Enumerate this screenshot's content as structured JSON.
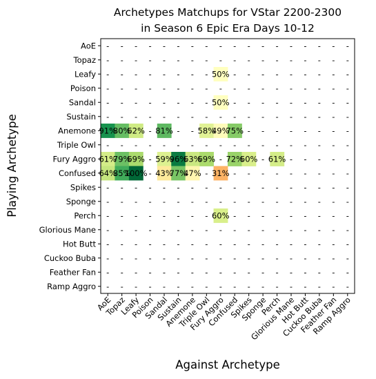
{
  "chart_data": {
    "type": "heatmap",
    "title": "Archetypes Matchups for VStar 2200-2300",
    "subtitle": "in Season 6 Epic Era Days 10-12",
    "xlabel": "Against Archetype",
    "ylabel": "Playing Archetype",
    "grid": false,
    "colormap": "RdYlGn",
    "value_range": [
      0,
      100
    ],
    "rows": [
      "AoE",
      "Topaz",
      "Leafy",
      "Poison",
      "Sandal",
      "Sustain",
      "Anemone",
      "Triple Owl",
      "Fury Aggro",
      "Confused",
      "Spikes",
      "Sponge",
      "Perch",
      "Glorious Mane",
      "Hot Butt",
      "Cuckoo Buba",
      "Feather Fan",
      "Ramp Aggro"
    ],
    "columns": [
      "AoE",
      "Topaz",
      "Leafy",
      "Poison",
      "Sandal",
      "Sustain",
      "Anemone",
      "Triple Owl",
      "Fury Aggro",
      "Confused",
      "Spikes",
      "Sponge",
      "Perch",
      "Glorious Mane",
      "Hot Butt",
      "Cuckoo Buba",
      "Feather Fan",
      "Ramp Aggro"
    ],
    "empty_label": "-",
    "values": [
      [
        null,
        null,
        null,
        null,
        null,
        null,
        null,
        null,
        null,
        null,
        null,
        null,
        null,
        null,
        null,
        null,
        null,
        null
      ],
      [
        null,
        null,
        null,
        null,
        null,
        null,
        null,
        null,
        null,
        null,
        null,
        null,
        null,
        null,
        null,
        null,
        null,
        null
      ],
      [
        null,
        null,
        null,
        null,
        null,
        null,
        null,
        null,
        50,
        null,
        null,
        null,
        null,
        null,
        null,
        null,
        null,
        null
      ],
      [
        null,
        null,
        null,
        null,
        null,
        null,
        null,
        null,
        null,
        null,
        null,
        null,
        null,
        null,
        null,
        null,
        null,
        null
      ],
      [
        null,
        null,
        null,
        null,
        null,
        null,
        null,
        null,
        50,
        null,
        null,
        null,
        null,
        null,
        null,
        null,
        null,
        null
      ],
      [
        null,
        null,
        null,
        null,
        null,
        null,
        null,
        null,
        null,
        null,
        null,
        null,
        null,
        null,
        null,
        null,
        null,
        null
      ],
      [
        91,
        80,
        62,
        null,
        81,
        null,
        null,
        58,
        49,
        75,
        null,
        null,
        null,
        null,
        null,
        null,
        null,
        null
      ],
      [
        null,
        null,
        null,
        null,
        null,
        null,
        null,
        null,
        null,
        null,
        null,
        null,
        null,
        null,
        null,
        null,
        null,
        null
      ],
      [
        61,
        79,
        69,
        null,
        59,
        96,
        63,
        69,
        null,
        72,
        60,
        null,
        61,
        null,
        null,
        null,
        null,
        null
      ],
      [
        64,
        85,
        100,
        null,
        43,
        77,
        47,
        null,
        31,
        null,
        null,
        null,
        null,
        null,
        null,
        null,
        null,
        null
      ],
      [
        null,
        null,
        null,
        null,
        null,
        null,
        null,
        null,
        null,
        null,
        null,
        null,
        null,
        null,
        null,
        null,
        null,
        null
      ],
      [
        null,
        null,
        null,
        null,
        null,
        null,
        null,
        null,
        null,
        null,
        null,
        null,
        null,
        null,
        null,
        null,
        null,
        null
      ],
      [
        null,
        null,
        null,
        null,
        null,
        null,
        null,
        null,
        60,
        null,
        null,
        null,
        null,
        null,
        null,
        null,
        null,
        null
      ],
      [
        null,
        null,
        null,
        null,
        null,
        null,
        null,
        null,
        null,
        null,
        null,
        null,
        null,
        null,
        null,
        null,
        null,
        null
      ],
      [
        null,
        null,
        null,
        null,
        null,
        null,
        null,
        null,
        null,
        null,
        null,
        null,
        null,
        null,
        null,
        null,
        null,
        null
      ],
      [
        null,
        null,
        null,
        null,
        null,
        null,
        null,
        null,
        null,
        null,
        null,
        null,
        null,
        null,
        null,
        null,
        null,
        null
      ],
      [
        null,
        null,
        null,
        null,
        null,
        null,
        null,
        null,
        null,
        null,
        null,
        null,
        null,
        null,
        null,
        null,
        null,
        null
      ],
      [
        null,
        null,
        null,
        null,
        null,
        null,
        null,
        null,
        null,
        null,
        null,
        null,
        null,
        null,
        null,
        null,
        null,
        null
      ]
    ]
  }
}
